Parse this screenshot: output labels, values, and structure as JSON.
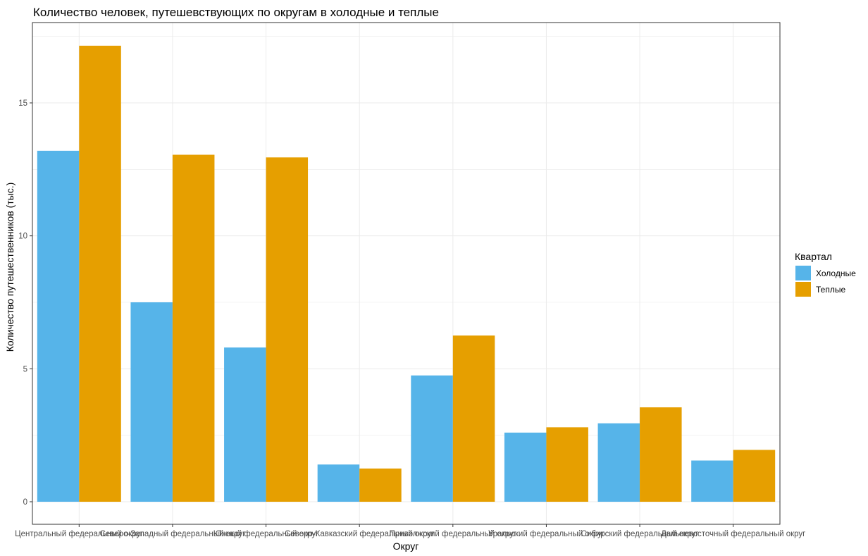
{
  "chart_data": {
    "type": "bar",
    "title": "Количество человек, путешевствующих по округам в холодные и теплые",
    "xlabel": "Округ",
    "ylabel": "Количество путешественников (тыс.)",
    "ylim": [
      0,
      17.6
    ],
    "yticks": [
      0,
      5,
      10,
      15
    ],
    "grid": true,
    "legend": {
      "title": "Квартал",
      "placement": "right"
    },
    "categories": [
      "Центральный федеральный округ",
      "Северо-Западный федеральный округ",
      "Южный федеральный округ",
      "Северо-Кавказский федеральный округ",
      "Приволжский федеральный округ",
      "Уральский федеральный округ",
      "Сибирский федеральный округ",
      "Дальневосточный федеральный округ"
    ],
    "series": [
      {
        "name": "Холодные",
        "color": "#56B4E9",
        "values": [
          13.2,
          7.5,
          5.8,
          1.4,
          4.75,
          2.6,
          2.95,
          1.55
        ]
      },
      {
        "name": "Теплые",
        "color": "#E69F00",
        "values": [
          17.15,
          13.05,
          12.95,
          1.25,
          6.25,
          2.8,
          3.55,
          1.95
        ]
      }
    ]
  }
}
